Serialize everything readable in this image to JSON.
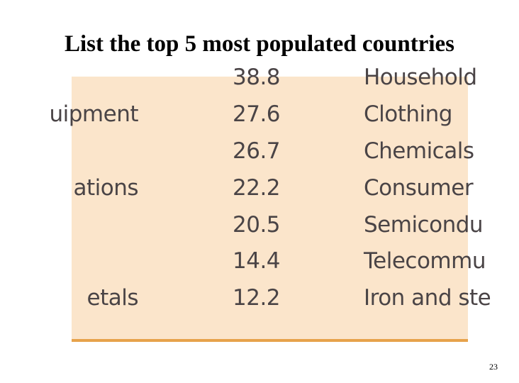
{
  "slide": {
    "title": "List the top 5 most populated countries",
    "page_number": "23"
  },
  "table": {
    "rows": [
      {
        "a": "",
        "b": "38.8",
        "c": "Household"
      },
      {
        "a": "uipment",
        "b": "27.6",
        "c": "Clothing"
      },
      {
        "a": "",
        "b": "26.7",
        "c": "Chemicals"
      },
      {
        "a": "ations",
        "b": "22.2",
        "c": "Consumer"
      },
      {
        "a": "",
        "b": "20.5",
        "c": "Semicondu"
      },
      {
        "a": "",
        "b": "14.4",
        "c": "Telecommu"
      },
      {
        "a": "etals",
        "b": "12.2",
        "c": "Iron and ste"
      }
    ]
  },
  "colors": {
    "table_background": "#fbe5cb",
    "table_rule": "#e7a24b",
    "table_text": "#4a4446"
  }
}
